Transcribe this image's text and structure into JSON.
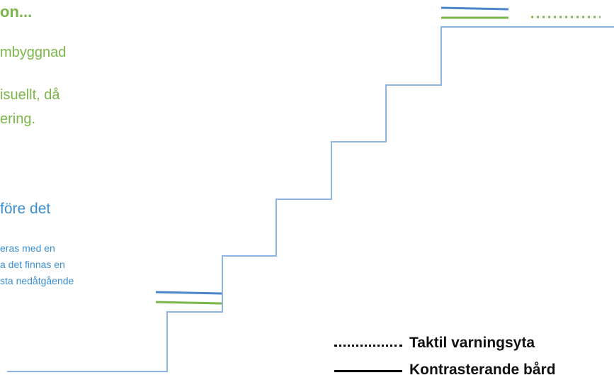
{
  "text_blocks": {
    "heading": "on...",
    "green_line_1": "mbyggnad",
    "green_line_2": "isuellt, då",
    "green_line_3": "ering.",
    "blue_heading": "före det",
    "blue_line_1": "eras med en",
    "blue_line_2": "a det finnas en",
    "blue_line_3": "sta nedåtgående"
  },
  "legend": {
    "tactile_label": "Taktil varningsyta",
    "contrast_label": "Kontrasterande bård"
  },
  "colors": {
    "step_line": "#8db4e2",
    "contrast_edge": "#4a86c8",
    "tactile_marker": "#7ab648",
    "heading_green": "#7ab648",
    "text_blue": "#3d8fd1"
  }
}
